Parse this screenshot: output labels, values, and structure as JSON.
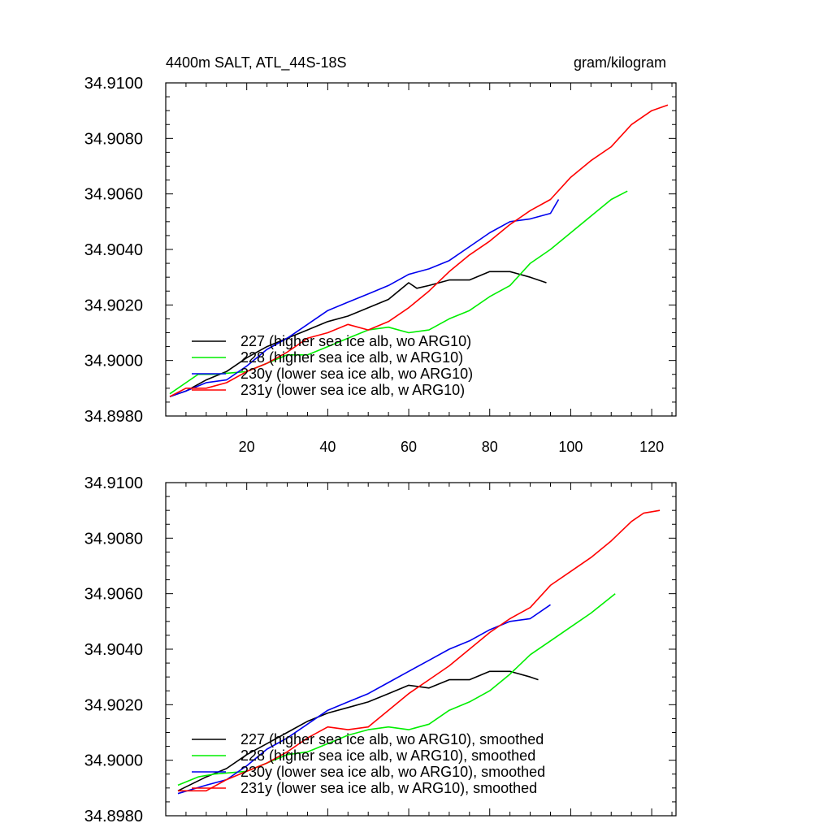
{
  "header": {
    "title": "4400m SALT, ATL_44S-18S",
    "units": "gram/kilogram"
  },
  "colors": {
    "227": "#000000",
    "228": "#00ee00",
    "230y": "#0000ee",
    "231y": "#ff0000"
  },
  "chart_data": [
    {
      "type": "line",
      "title": "4400m SALT, ATL_44S-18S",
      "xlabel": "",
      "ylabel": "",
      "xlim": [
        0,
        126
      ],
      "ylim": [
        34.898,
        34.91
      ],
      "y_ticks": [
        "34.9100",
        "34.9080",
        "34.9060",
        "34.9040",
        "34.9020",
        "34.9000",
        "34.8980"
      ],
      "x_ticks": [
        "20",
        "40",
        "60",
        "80",
        "100",
        "120"
      ],
      "legend_position": "bottom-left",
      "series": [
        {
          "id": "227",
          "name": "227 (higher sea ice alb, wo ARG10)",
          "x": [
            1,
            5,
            10,
            15,
            20,
            25,
            30,
            35,
            40,
            45,
            50,
            55,
            60,
            62,
            65,
            70,
            75,
            80,
            85,
            90,
            94
          ],
          "y": [
            34.8987,
            34.8989,
            34.8993,
            34.8996,
            34.9001,
            34.9005,
            34.9008,
            34.9011,
            34.9014,
            34.9016,
            34.9019,
            34.9022,
            34.9028,
            34.9026,
            34.9027,
            34.9029,
            34.9029,
            34.9032,
            34.9032,
            34.903,
            34.9028
          ]
        },
        {
          "id": "228",
          "name": "228 (higher sea ice alb, w ARG10)",
          "x": [
            1,
            5,
            8,
            12,
            20,
            25,
            30,
            35,
            40,
            45,
            50,
            55,
            60,
            65,
            70,
            75,
            80,
            85,
            90,
            95,
            100,
            105,
            110,
            114
          ],
          "y": [
            34.8988,
            34.8992,
            34.8995,
            34.8995,
            34.8996,
            34.8999,
            34.9002,
            34.9002,
            34.9005,
            34.9008,
            34.9011,
            34.9012,
            34.901,
            34.9011,
            34.9015,
            34.9018,
            34.9023,
            34.9027,
            34.9035,
            34.904,
            34.9046,
            34.9052,
            34.9058,
            34.9061
          ]
        },
        {
          "id": "230y",
          "name": "230y (lower sea ice alb, wo ARG10)",
          "x": [
            1,
            5,
            10,
            15,
            20,
            25,
            30,
            35,
            40,
            45,
            50,
            55,
            60,
            65,
            70,
            75,
            80,
            85,
            90,
            95,
            97
          ],
          "y": [
            34.8987,
            34.8989,
            34.8992,
            34.8993,
            34.8998,
            34.9004,
            34.9008,
            34.9013,
            34.9018,
            34.9021,
            34.9024,
            34.9027,
            34.9031,
            34.9033,
            34.9036,
            34.9041,
            34.9046,
            34.905,
            34.9051,
            34.9053,
            34.9058
          ]
        },
        {
          "id": "231y",
          "name": "231y (lower sea ice alb, w ARG10)",
          "x": [
            1,
            5,
            10,
            15,
            20,
            25,
            30,
            35,
            40,
            45,
            50,
            55,
            60,
            65,
            70,
            75,
            80,
            85,
            90,
            95,
            100,
            105,
            110,
            115,
            120,
            124
          ],
          "y": [
            34.8987,
            34.899,
            34.899,
            34.8992,
            34.8996,
            34.8999,
            34.9003,
            34.9008,
            34.901,
            34.9013,
            34.9011,
            34.9014,
            34.9019,
            34.9025,
            34.9032,
            34.9038,
            34.9043,
            34.9049,
            34.9054,
            34.9058,
            34.9066,
            34.9072,
            34.9077,
            34.9085,
            34.909,
            34.9092
          ]
        }
      ]
    },
    {
      "type": "line",
      "title": "",
      "xlabel": "",
      "ylabel": "",
      "xlim": [
        0,
        126
      ],
      "ylim": [
        34.898,
        34.91
      ],
      "y_ticks": [
        "34.9100",
        "34.9080",
        "34.9060",
        "34.9040",
        "34.9020",
        "34.9000",
        "34.8980"
      ],
      "x_ticks": [],
      "legend_position": "bottom-left",
      "series": [
        {
          "id": "227",
          "name": "227 (higher sea ice alb, wo ARG10), smoothed",
          "x": [
            3,
            10,
            15,
            20,
            25,
            30,
            35,
            40,
            45,
            50,
            55,
            60,
            65,
            70,
            75,
            80,
            85,
            90,
            92
          ],
          "y": [
            34.8989,
            34.8994,
            34.8997,
            34.9002,
            34.9006,
            34.901,
            34.9014,
            34.9017,
            34.9019,
            34.9021,
            34.9024,
            34.9027,
            34.9026,
            34.9029,
            34.9029,
            34.9032,
            34.9032,
            34.903,
            34.9029
          ]
        },
        {
          "id": "228",
          "name": "228 (higher sea ice alb, w ARG10), smoothed",
          "x": [
            3,
            8,
            12,
            20,
            25,
            30,
            35,
            40,
            45,
            50,
            55,
            60,
            65,
            70,
            75,
            80,
            85,
            90,
            95,
            100,
            105,
            111
          ],
          "y": [
            34.8991,
            34.8994,
            34.8995,
            34.8996,
            34.8999,
            34.9002,
            34.9003,
            34.9006,
            34.9009,
            34.9011,
            34.9012,
            34.9011,
            34.9013,
            34.9018,
            34.9021,
            34.9025,
            34.9031,
            34.9038,
            34.9043,
            34.9048,
            34.9053,
            34.906
          ]
        },
        {
          "id": "230y",
          "name": "230y (lower sea ice alb, wo ARG10), smoothed",
          "x": [
            3,
            10,
            15,
            20,
            25,
            30,
            35,
            40,
            45,
            50,
            55,
            60,
            65,
            70,
            75,
            80,
            85,
            90,
            95
          ],
          "y": [
            34.8988,
            34.8991,
            34.8993,
            34.8998,
            34.9004,
            34.9008,
            34.9013,
            34.9018,
            34.9021,
            34.9024,
            34.9028,
            34.9032,
            34.9036,
            34.904,
            34.9043,
            34.9047,
            34.905,
            34.9051,
            34.9056
          ]
        },
        {
          "id": "231y",
          "name": "231y (lower sea ice alb, w ARG10), smoothed",
          "x": [
            3,
            10,
            15,
            20,
            25,
            30,
            35,
            40,
            45,
            50,
            55,
            60,
            65,
            70,
            75,
            80,
            85,
            90,
            95,
            100,
            105,
            110,
            115,
            118,
            122
          ],
          "y": [
            34.8989,
            34.8989,
            34.8993,
            34.8996,
            34.8999,
            34.9003,
            34.9008,
            34.9012,
            34.9011,
            34.9012,
            34.9018,
            34.9024,
            34.9029,
            34.9034,
            34.904,
            34.9046,
            34.9051,
            34.9055,
            34.9063,
            34.9068,
            34.9073,
            34.9079,
            34.9086,
            34.9089,
            34.909
          ]
        }
      ]
    }
  ]
}
